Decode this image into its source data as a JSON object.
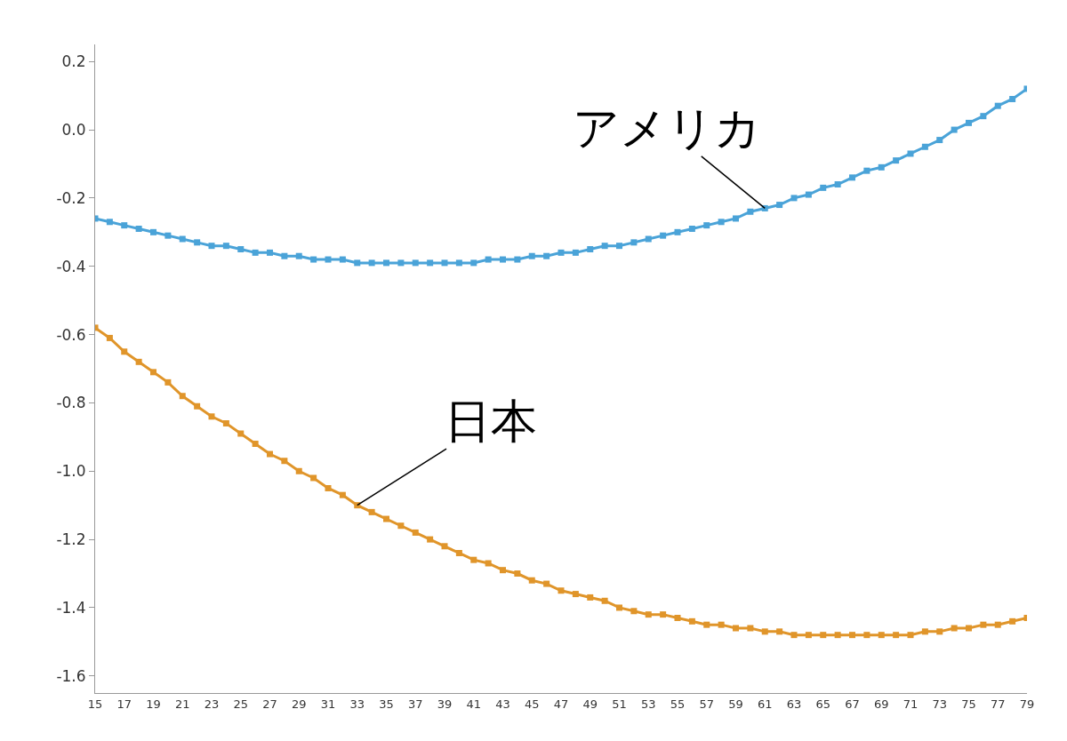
{
  "chart_data": {
    "type": "line",
    "marker": "square",
    "x": [
      15,
      16,
      17,
      18,
      19,
      20,
      21,
      22,
      23,
      24,
      25,
      26,
      27,
      28,
      29,
      30,
      31,
      32,
      33,
      34,
      35,
      36,
      37,
      38,
      39,
      40,
      41,
      42,
      43,
      44,
      45,
      46,
      47,
      48,
      49,
      50,
      51,
      52,
      53,
      54,
      55,
      56,
      57,
      58,
      59,
      60,
      61,
      62,
      63,
      64,
      65,
      66,
      67,
      68,
      69,
      70,
      71,
      72,
      73,
      74,
      75,
      76,
      77,
      78,
      79
    ],
    "series": [
      {
        "color": "#4aa3d8",
        "values": [
          -0.26,
          -0.27,
          -0.28,
          -0.29,
          -0.3,
          -0.31,
          -0.32,
          -0.33,
          -0.34,
          -0.34,
          -0.35,
          -0.36,
          -0.36,
          -0.37,
          -0.37,
          -0.38,
          -0.38,
          -0.38,
          -0.39,
          -0.39,
          -0.39,
          -0.39,
          -0.39,
          -0.39,
          -0.39,
          -0.39,
          -0.39,
          -0.38,
          -0.38,
          -0.38,
          -0.37,
          -0.37,
          -0.36,
          -0.36,
          -0.35,
          -0.34,
          -0.34,
          -0.33,
          -0.32,
          -0.31,
          -0.3,
          -0.29,
          -0.28,
          -0.27,
          -0.26,
          -0.24,
          -0.23,
          -0.22,
          -0.2,
          -0.19,
          -0.17,
          -0.16,
          -0.14,
          -0.12,
          -0.11,
          -0.09,
          -0.07,
          -0.05,
          -0.03,
          0.0,
          0.02,
          0.04,
          0.07,
          0.09,
          0.12
        ]
      },
      {
        "color": "#e0952a",
        "values": [
          -0.58,
          -0.61,
          -0.65,
          -0.68,
          -0.71,
          -0.74,
          -0.78,
          -0.81,
          -0.84,
          -0.86,
          -0.89,
          -0.92,
          -0.95,
          -0.97,
          -1.0,
          -1.02,
          -1.05,
          -1.07,
          -1.1,
          -1.12,
          -1.14,
          -1.16,
          -1.18,
          -1.2,
          -1.22,
          -1.24,
          -1.26,
          -1.27,
          -1.29,
          -1.3,
          -1.32,
          -1.33,
          -1.35,
          -1.36,
          -1.37,
          -1.38,
          -1.4,
          -1.41,
          -1.42,
          -1.42,
          -1.43,
          -1.44,
          -1.45,
          -1.45,
          -1.46,
          -1.46,
          -1.47,
          -1.47,
          -1.48,
          -1.48,
          -1.48,
          -1.48,
          -1.48,
          -1.48,
          -1.48,
          -1.48,
          -1.48,
          -1.47,
          -1.47,
          -1.46,
          -1.46,
          -1.45,
          -1.45,
          -1.44,
          -1.43
        ]
      }
    ],
    "xlim": [
      15,
      79
    ],
    "xticks": [
      15,
      17,
      19,
      21,
      23,
      25,
      27,
      29,
      31,
      33,
      35,
      37,
      39,
      41,
      43,
      45,
      47,
      49,
      51,
      53,
      55,
      57,
      59,
      61,
      63,
      65,
      67,
      69,
      71,
      73,
      75,
      77,
      79
    ],
    "ylim": [
      -1.65,
      0.25
    ],
    "yticks": [
      {
        "value": -1.6,
        "label": "-1.6"
      },
      {
        "value": -1.4,
        "label": "-1.4"
      },
      {
        "value": -1.2,
        "label": "-1.2"
      },
      {
        "value": -1.0,
        "label": "-1.0"
      },
      {
        "value": -0.8,
        "label": "-0.8"
      },
      {
        "value": -0.6,
        "label": "-0.6"
      },
      {
        "value": -0.4,
        "label": "-0.4"
      },
      {
        "value": -0.2,
        "label": "-0.2"
      },
      {
        "value": 0.0,
        "label": "0.0"
      },
      {
        "value": 0.2,
        "label": "0.2"
      }
    ],
    "annotations": [
      {
        "text": "アメリカ",
        "x": 61,
        "y": -0.23
      },
      {
        "text": "日本",
        "x": 33,
        "y": -1.1
      }
    ]
  }
}
